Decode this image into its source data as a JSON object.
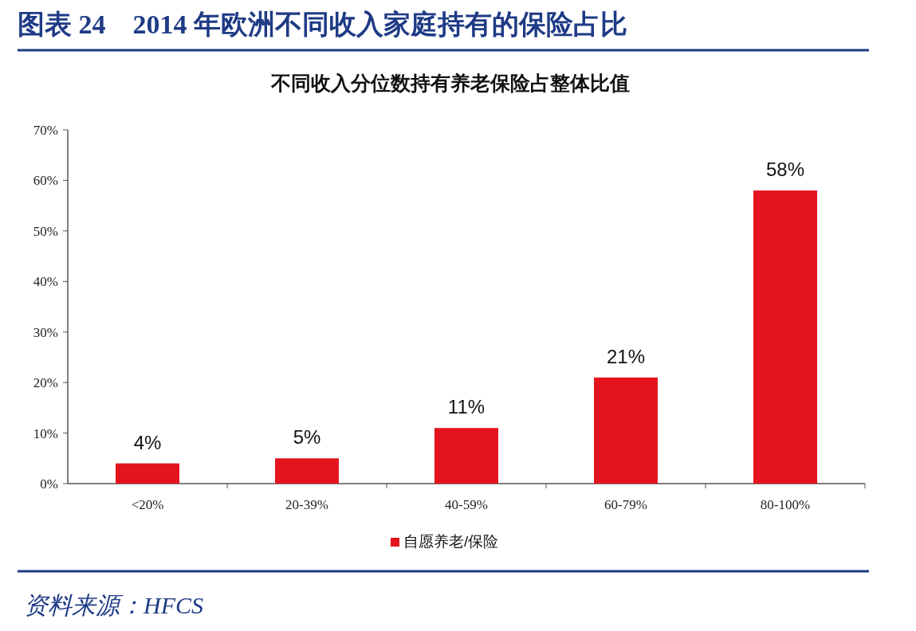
{
  "chart_data": {
    "type": "bar",
    "title": "图表 24　2014 年欧洲不同收入家庭持有的保险占比",
    "subtitle": "不同收入分位数持有养老保险占整体比值",
    "categories": [
      "<20%",
      "20-39%",
      "40-59%",
      "60-79%",
      "80-100%"
    ],
    "series": [
      {
        "name": "自愿养老/保险",
        "color": "#e3141d",
        "values": [
          4,
          5,
          11,
          21,
          58
        ],
        "value_labels": [
          "4%",
          "5%",
          "11%",
          "21%",
          "58%"
        ]
      }
    ],
    "ylim": [
      0,
      70
    ],
    "yticks": [
      {
        "value": 0,
        "label": "0%"
      },
      {
        "value": 10,
        "label": "10%"
      },
      {
        "value": 20,
        "label": "20%"
      },
      {
        "value": 30,
        "label": "30%"
      },
      {
        "value": 40,
        "label": "40%"
      },
      {
        "value": 50,
        "label": "50%"
      },
      {
        "value": 60,
        "label": "60%"
      },
      {
        "value": 70,
        "label": "70%"
      }
    ],
    "grid": false,
    "legend": "bottom",
    "annotations": [
      "资料来源：HFCS"
    ]
  }
}
